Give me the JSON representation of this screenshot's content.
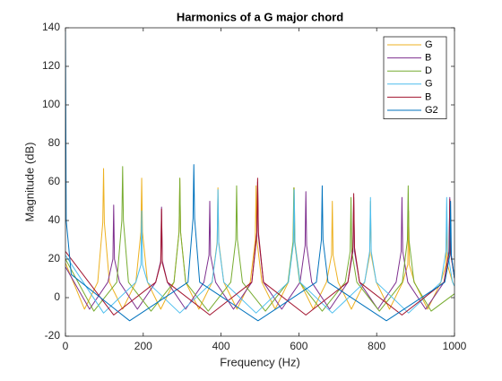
{
  "chart_data": {
    "type": "line",
    "title": "Harmonics of a G major chord",
    "x_label": "Frequency (Hz)",
    "y_label": "Magnitude (dB)",
    "xlim": [
      0,
      1000
    ],
    "ylim": [
      -20,
      140
    ],
    "xticks": [
      0,
      200,
      400,
      600,
      800,
      1000
    ],
    "yticks": [
      -20,
      0,
      20,
      40,
      60,
      80,
      100,
      120,
      140
    ],
    "grid": false,
    "legend": "top-right",
    "series": [
      {
        "name": "G",
        "color": "#EDB120",
        "x": [
          0,
          49,
          83,
          96,
          98,
          100,
          113,
          147,
          181,
          194,
          196,
          198,
          211,
          245,
          279,
          292,
          294,
          296,
          309,
          343,
          377,
          390,
          392,
          394,
          407,
          441,
          475,
          488,
          490,
          492,
          505,
          539,
          573,
          586,
          588,
          590,
          603,
          637,
          671,
          684,
          686,
          688,
          701,
          735,
          769,
          782,
          784,
          786,
          799,
          833,
          867,
          880,
          882,
          884,
          897,
          931,
          965,
          978,
          980,
          982,
          995,
          1000
        ],
        "values": [
          18,
          -6,
          8,
          39,
          67,
          39,
          8,
          -6,
          8,
          34,
          62,
          34,
          8,
          -6,
          8,
          34,
          62,
          34,
          8,
          -6,
          8,
          29,
          57,
          29,
          8,
          -6,
          8,
          30,
          58,
          30,
          8,
          -6,
          8,
          29,
          57,
          29,
          8,
          -6,
          8,
          22,
          50,
          22,
          8,
          -6,
          8,
          22,
          50,
          22,
          8,
          -6,
          8,
          17,
          45,
          17,
          8,
          -6,
          8,
          17,
          45,
          17,
          8,
          6
        ]
      },
      {
        "name": "B",
        "color": "#7E2F8E",
        "x": [
          0,
          62,
          109,
          122,
          124,
          126,
          139,
          185,
          232,
          245,
          247,
          249,
          262,
          309,
          356,
          369,
          371,
          373,
          386,
          432,
          479,
          492,
          494,
          496,
          509,
          556,
          603,
          616,
          618,
          620,
          633,
          679,
          726,
          739,
          741,
          743,
          756,
          803,
          850,
          863,
          865,
          867,
          880,
          926,
          973,
          986,
          988,
          990,
          1000
        ],
        "values": [
          16,
          -6,
          8,
          20,
          48,
          20,
          8,
          -6,
          8,
          19,
          47,
          19,
          8,
          -6,
          8,
          22,
          50,
          22,
          8,
          -6,
          8,
          32,
          60,
          32,
          8,
          -6,
          8,
          27,
          55,
          27,
          8,
          -6,
          8,
          24,
          52,
          24,
          8,
          -6,
          8,
          24,
          52,
          24,
          8,
          -6,
          8,
          24,
          52,
          24,
          10
        ]
      },
      {
        "name": "D",
        "color": "#77AC30",
        "x": [
          0,
          73,
          132,
          145,
          147,
          149,
          162,
          220,
          279,
          292,
          294,
          296,
          309,
          367,
          425,
          438,
          440,
          442,
          455,
          514,
          572,
          585,
          587,
          589,
          602,
          660,
          719,
          732,
          734,
          736,
          749,
          807,
          866,
          879,
          881,
          883,
          896,
          940,
          1000
        ],
        "values": [
          20,
          -7,
          8,
          40,
          68,
          40,
          8,
          -7,
          8,
          34,
          62,
          34,
          8,
          -7,
          8,
          30,
          58,
          30,
          8,
          -7,
          8,
          29,
          57,
          29,
          8,
          -7,
          8,
          24,
          52,
          24,
          8,
          -7,
          8,
          30,
          58,
          30,
          8,
          -7,
          2
        ]
      },
      {
        "name": "G",
        "color": "#4DBEEE",
        "x": [
          0,
          98,
          181,
          194,
          196,
          198,
          211,
          294,
          377,
          390,
          392,
          394,
          407,
          490,
          573,
          586,
          588,
          590,
          603,
          686,
          769,
          782,
          784,
          786,
          799,
          882,
          965,
          978,
          980,
          982,
          995,
          1000
        ],
        "values": [
          22,
          -8,
          8,
          17,
          45,
          17,
          8,
          -8,
          8,
          28,
          56,
          28,
          8,
          -8,
          8,
          28,
          56,
          28,
          8,
          -8,
          8,
          24,
          52,
          24,
          8,
          -8,
          8,
          24,
          52,
          24,
          8,
          6
        ]
      },
      {
        "name": "B",
        "color": "#A2142F",
        "x": [
          0,
          124,
          232,
          245,
          247,
          249,
          262,
          371,
          479,
          492,
          494,
          496,
          509,
          618,
          726,
          739,
          741,
          743,
          756,
          865,
          973,
          986,
          988,
          990,
          1000
        ],
        "values": [
          24,
          -9,
          8,
          18,
          46,
          18,
          8,
          -9,
          8,
          34,
          62,
          34,
          8,
          -9,
          8,
          26,
          54,
          26,
          8,
          -9,
          8,
          23,
          51,
          23,
          10
        ]
      },
      {
        "name": "G2",
        "color": "#0072BD",
        "x": [
          0,
          2,
          15,
          165,
          315,
          328,
          330,
          332,
          345,
          495,
          645,
          658,
          660,
          662,
          675,
          825,
          975,
          988,
          990,
          992,
          1000
        ],
        "values": [
          140,
          40,
          12,
          -12,
          8,
          41,
          69,
          41,
          8,
          -12,
          8,
          30,
          58,
          30,
          8,
          -12,
          8,
          22,
          50,
          22,
          10
        ]
      }
    ]
  }
}
